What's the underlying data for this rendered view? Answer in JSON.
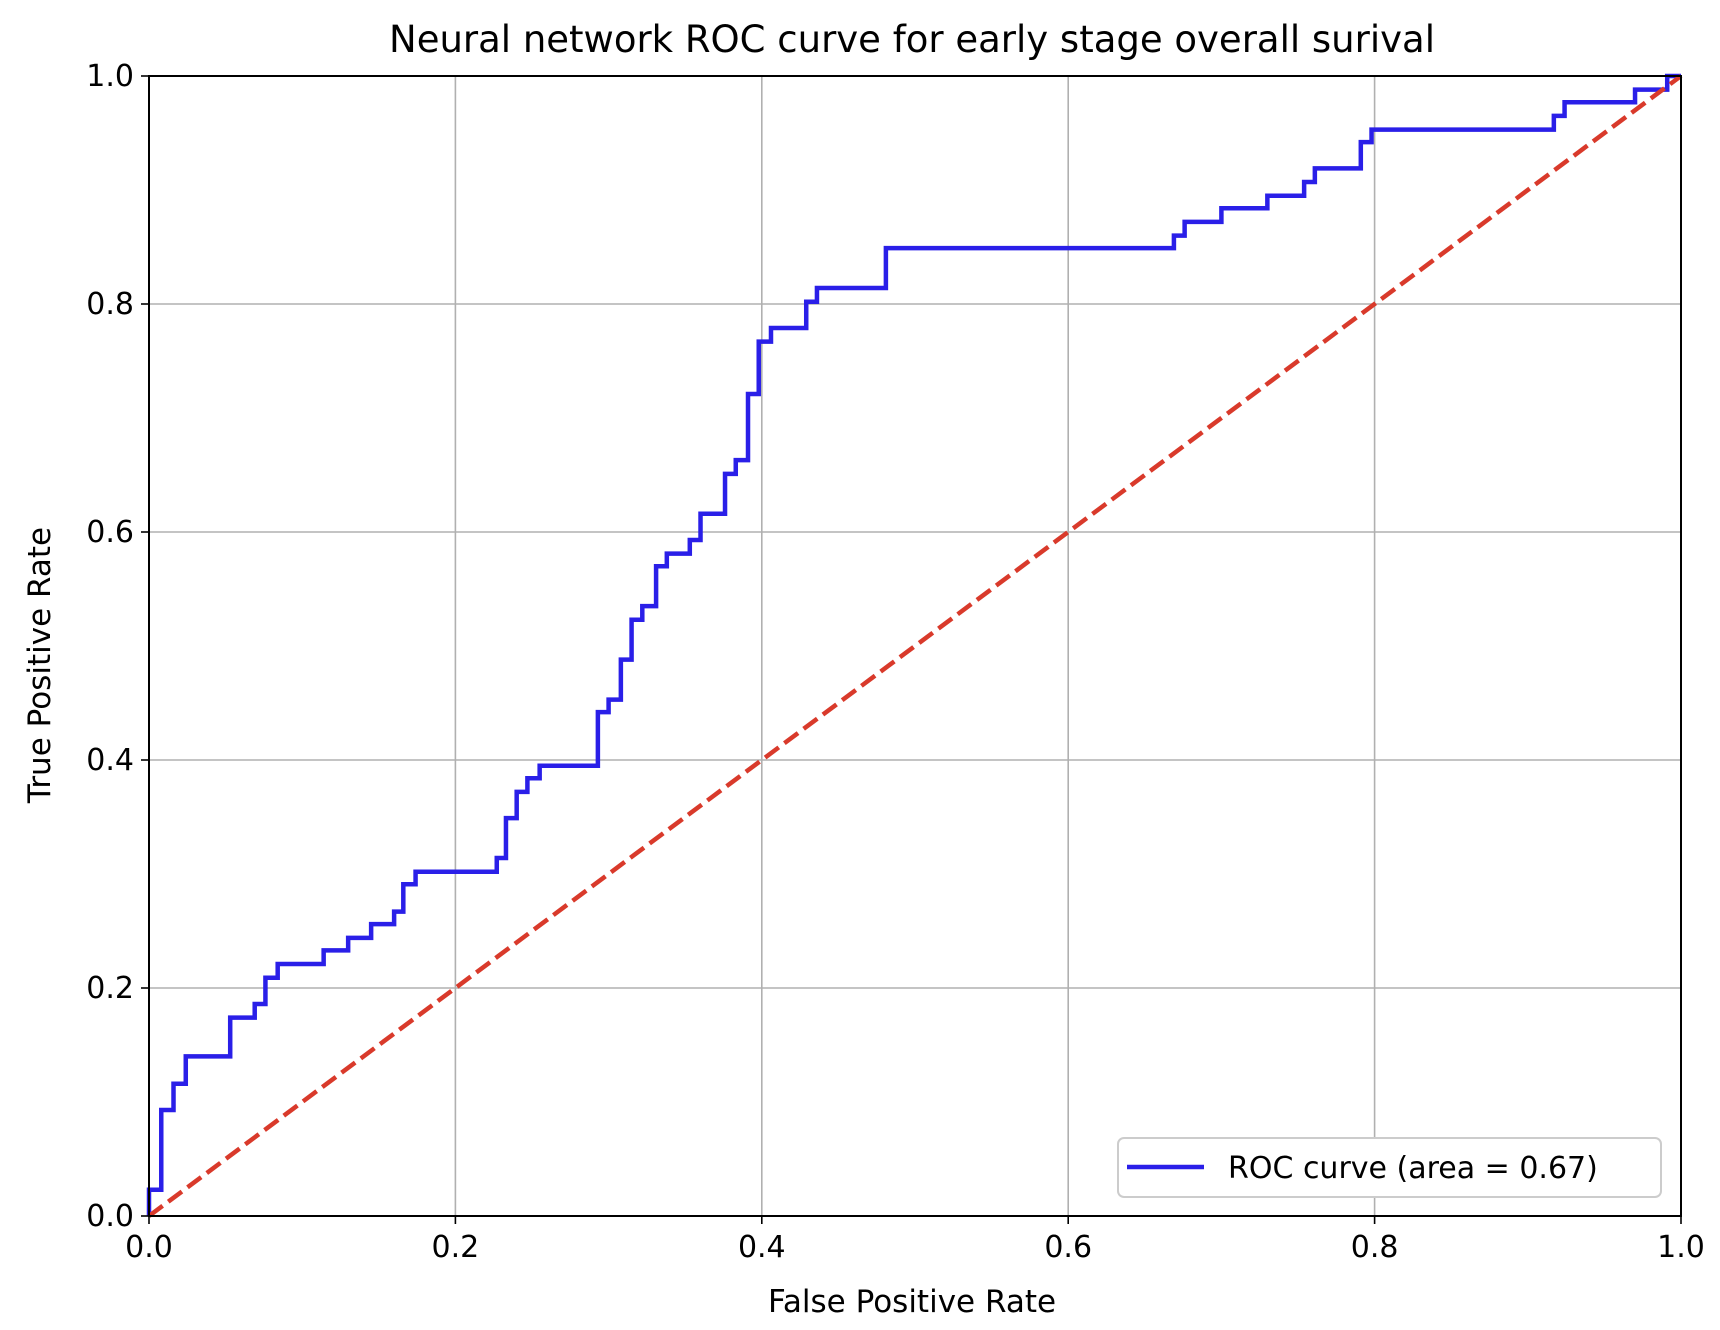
{
  "chart_data": {
    "type": "line",
    "title": "Neural network ROC curve for early stage overall surival",
    "xlabel": "False Positive Rate",
    "ylabel": "True Positive Rate",
    "xlim": [
      0.0,
      1.0
    ],
    "ylim": [
      0.0,
      1.0
    ],
    "xticks": [
      0.0,
      0.2,
      0.4,
      0.6,
      0.8,
      1.0
    ],
    "yticks": [
      0.0,
      0.2,
      0.4,
      0.6,
      0.8,
      1.0
    ],
    "xtick_labels": [
      "0.0",
      "0.2",
      "0.4",
      "0.6",
      "0.8",
      "1.0"
    ],
    "ytick_labels": [
      "0.0",
      "0.2",
      "0.4",
      "0.6",
      "0.8",
      "1.0"
    ],
    "grid": true,
    "legend_position": "lower-right",
    "series": [
      {
        "name": "ROC curve (area = 0.67)",
        "color": "#2a1fe8",
        "style": "solid-step",
        "x": [
          0.0,
          0.0,
          0.008,
          0.008,
          0.016,
          0.016,
          0.024,
          0.024,
          0.053,
          0.053,
          0.069,
          0.069,
          0.076,
          0.076,
          0.084,
          0.084,
          0.114,
          0.114,
          0.13,
          0.13,
          0.145,
          0.145,
          0.16,
          0.16,
          0.166,
          0.166,
          0.174,
          0.174,
          0.227,
          0.227,
          0.233,
          0.233,
          0.24,
          0.24,
          0.247,
          0.247,
          0.255,
          0.255,
          0.293,
          0.293,
          0.3,
          0.3,
          0.308,
          0.308,
          0.315,
          0.315,
          0.322,
          0.322,
          0.331,
          0.331,
          0.338,
          0.338,
          0.353,
          0.353,
          0.36,
          0.36,
          0.376,
          0.376,
          0.383,
          0.383,
          0.391,
          0.391,
          0.398,
          0.398,
          0.406,
          0.406,
          0.429,
          0.429,
          0.436,
          0.436,
          0.481,
          0.481,
          0.669,
          0.669,
          0.676,
          0.676,
          0.7,
          0.7,
          0.73,
          0.73,
          0.754,
          0.754,
          0.761,
          0.761,
          0.791,
          0.791,
          0.798,
          0.798,
          0.917,
          0.917,
          0.924,
          0.924,
          0.97,
          0.97,
          0.991,
          0.991,
          1.0
        ],
        "y": [
          0.0,
          0.023,
          0.023,
          0.093,
          0.093,
          0.116,
          0.116,
          0.14,
          0.14,
          0.174,
          0.174,
          0.186,
          0.186,
          0.209,
          0.209,
          0.221,
          0.221,
          0.233,
          0.233,
          0.244,
          0.244,
          0.256,
          0.256,
          0.267,
          0.267,
          0.291,
          0.291,
          0.302,
          0.302,
          0.314,
          0.314,
          0.349,
          0.349,
          0.372,
          0.372,
          0.384,
          0.384,
          0.395,
          0.395,
          0.442,
          0.442,
          0.453,
          0.453,
          0.488,
          0.488,
          0.523,
          0.523,
          0.535,
          0.535,
          0.57,
          0.57,
          0.581,
          0.581,
          0.593,
          0.593,
          0.616,
          0.616,
          0.651,
          0.651,
          0.663,
          0.663,
          0.721,
          0.721,
          0.767,
          0.767,
          0.779,
          0.779,
          0.802,
          0.802,
          0.814,
          0.814,
          0.849,
          0.849,
          0.86,
          0.86,
          0.872,
          0.872,
          0.884,
          0.884,
          0.895,
          0.895,
          0.907,
          0.907,
          0.919,
          0.919,
          0.942,
          0.942,
          0.953,
          0.953,
          0.965,
          0.965,
          0.977,
          0.977,
          0.988,
          0.988,
          1.0,
          1.0
        ]
      },
      {
        "color": "#d93a2b",
        "style": "dashed",
        "x": [
          0.0,
          1.0
        ],
        "y": [
          0.0,
          1.0
        ]
      }
    ]
  }
}
